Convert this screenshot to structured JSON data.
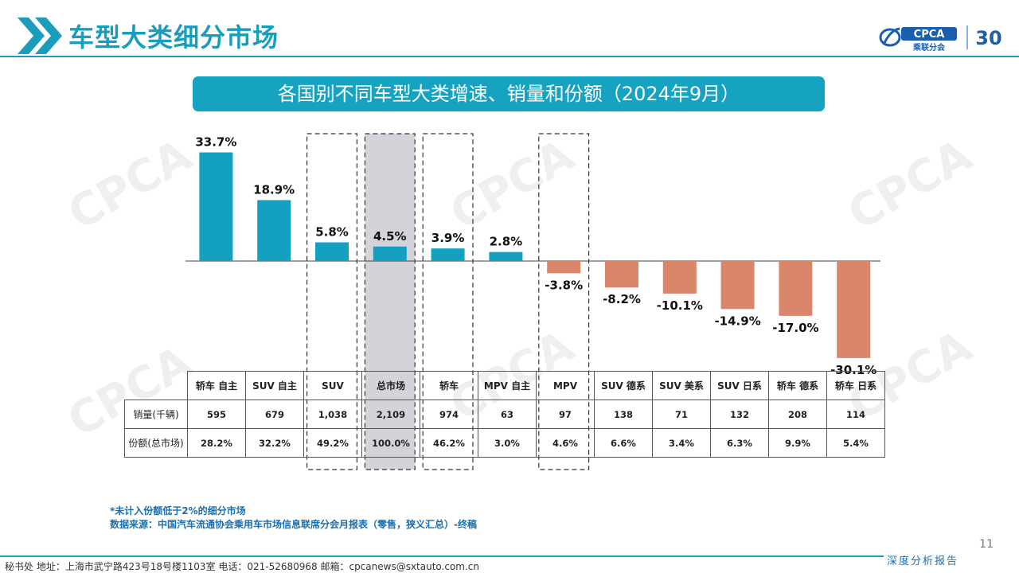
{
  "header": {
    "title": "车型大类细分市场",
    "logo_text": "CPCA",
    "logo_subtext": "乘联分会",
    "badge_text": "30"
  },
  "banner": {
    "title": "各国别不同车型大类增速、销量和份额（2024年9月）"
  },
  "chart_data": {
    "type": "bar",
    "categories": [
      "轿车 自主",
      "SUV 自主",
      "SUV",
      "总市场",
      "轿车",
      "MPV 自主",
      "MPV",
      "SUV 德系",
      "SUV 美系",
      "SUV 日系",
      "轿车 德系",
      "轿车 日系"
    ],
    "values": [
      33.7,
      18.9,
      5.8,
      4.5,
      3.9,
      2.8,
      -3.8,
      -8.2,
      -10.1,
      -14.9,
      -17.0,
      -30.1
    ],
    "data_labels": [
      "33.7%",
      "18.9%",
      "5.8%",
      "4.5%",
      "3.9%",
      "2.8%",
      "-3.8%",
      "-8.2%",
      "-10.1%",
      "-14.9%",
      "-17.0%",
      "-30.1%"
    ],
    "ylim": [
      -31,
      36
    ],
    "positive_color": "#14a0c0",
    "negative_color": "#d9866a",
    "highlight_color": "#d4d3da",
    "dashed_boxes": [
      "SUV",
      "轿车",
      "MPV"
    ],
    "shaded_boxes": [
      "总市场"
    ],
    "grid": false,
    "title": "",
    "xlabel": "",
    "ylabel": ""
  },
  "table": {
    "rows": [
      {
        "label": "销量(千辆)",
        "values": [
          "595",
          "679",
          "1,038",
          "2,109",
          "974",
          "63",
          "97",
          "138",
          "71",
          "132",
          "208",
          "114"
        ]
      },
      {
        "label": "份额(总市场)",
        "values": [
          "28.2%",
          "32.2%",
          "49.2%",
          "100.0%",
          "46.2%",
          "3.0%",
          "4.6%",
          "6.6%",
          "3.4%",
          "6.3%",
          "9.9%",
          "5.4%"
        ]
      }
    ]
  },
  "footnote": {
    "line1": "*未计入份额低于2%的细分市场",
    "line2": "数据来源：中国汽车流通协会乘用车市场信息联席分会月报表（零售，狭义汇总）-终稿"
  },
  "footer": {
    "page_number": "11",
    "address": "秘书处   地址：上海市武宁路423号18号楼1103室  电话：021-52680968   邮箱：cpcanews@sxtauto.com.cn",
    "brand": "深度分析报告"
  }
}
